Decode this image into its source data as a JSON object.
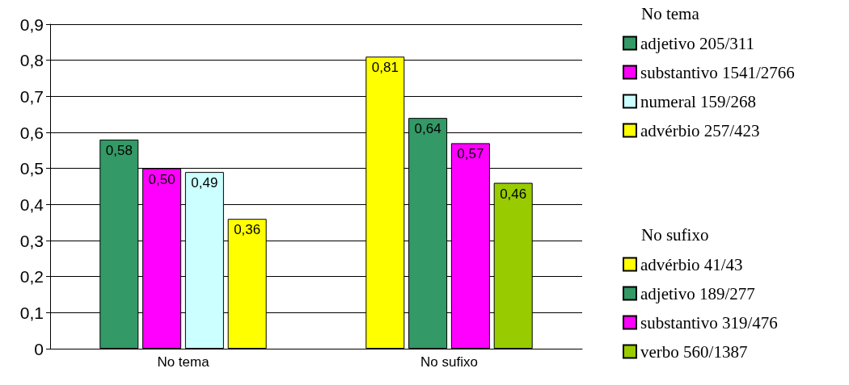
{
  "chart_data": {
    "type": "bar",
    "categories": [
      "No tema",
      "No sufixo"
    ],
    "legend_title": "No tema",
    "annotations": [
      "No sufixo"
    ],
    "series": [
      {
        "name": "adjetivo 205/311",
        "color": "#339966",
        "values": [
          0.58,
          null
        ],
        "value_labels": [
          "0,58",
          null
        ]
      },
      {
        "name": "substantivo 1541/2766",
        "color": "#ff00ff",
        "values": [
          0.5,
          null
        ],
        "value_labels": [
          "0,50",
          null
        ]
      },
      {
        "name": "numeral 159/268",
        "color": "#ccffff",
        "values": [
          0.49,
          null
        ],
        "value_labels": [
          "0,49",
          null
        ]
      },
      {
        "name": "advérbio 257/423",
        "color": "#ffff00",
        "values": [
          0.36,
          null
        ],
        "value_labels": [
          "0,36",
          null
        ]
      },
      {
        "name": "advérbio 41/43",
        "color": "#ffff00",
        "values": [
          null,
          0.81
        ],
        "value_labels": [
          null,
          "0,81"
        ]
      },
      {
        "name": "adjetivo 189/277",
        "color": "#339966",
        "values": [
          null,
          0.64
        ],
        "value_labels": [
          null,
          "0,64"
        ]
      },
      {
        "name": "substantivo 319/476",
        "color": "#ff00ff",
        "values": [
          null,
          0.57
        ],
        "value_labels": [
          null,
          "0,57"
        ]
      },
      {
        "name": "verbo 560/1387",
        "color": "#99cc00",
        "values": [
          null,
          0.46
        ],
        "value_labels": [
          null,
          "0,46"
        ]
      }
    ],
    "ylim": [
      0,
      0.9
    ],
    "yticks": [
      {
        "value": 0,
        "label": "0"
      },
      {
        "value": 0.1,
        "label": "0,1"
      },
      {
        "value": 0.2,
        "label": "0,2"
      },
      {
        "value": 0.3,
        "label": "0,3"
      },
      {
        "value": 0.4,
        "label": "0,4"
      },
      {
        "value": 0.5,
        "label": "0,5"
      },
      {
        "value": 0.6,
        "label": "0,6"
      },
      {
        "value": 0.7,
        "label": "0,7"
      },
      {
        "value": 0.8,
        "label": "0,8"
      },
      {
        "value": 0.9,
        "label": "0,9"
      }
    ],
    "grid": "y",
    "legend": "right"
  }
}
